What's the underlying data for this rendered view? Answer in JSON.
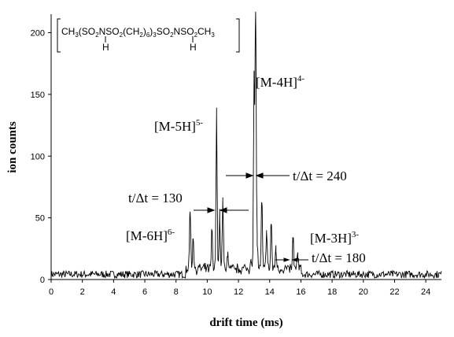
{
  "chart_data": {
    "type": "line",
    "xlabel": "drift time (ms)",
    "ylabel": "ion counts",
    "xlim": [
      0,
      25
    ],
    "ylim": [
      0,
      215
    ],
    "x_ticks": [
      "0",
      "2",
      "4",
      "6",
      "8",
      "10",
      "12",
      "14",
      "16",
      "18",
      "20",
      "22",
      "24"
    ],
    "y_ticks": [
      "0",
      "50",
      "100",
      "150",
      "200"
    ],
    "grid": false,
    "legend": "none",
    "series": [
      {
        "color": "#000000",
        "baseline": 3,
        "peaks": [
          {
            "x": 8.9,
            "y": 52
          },
          {
            "x": 9.1,
            "y": 30
          },
          {
            "x": 10.3,
            "y": 35
          },
          {
            "x": 10.6,
            "y": 130
          },
          {
            "x": 10.8,
            "y": 45
          },
          {
            "x": 11.0,
            "y": 58
          },
          {
            "x": 11.3,
            "y": 15
          },
          {
            "x": 12.8,
            "y": 12
          },
          {
            "x": 13.0,
            "y": 157
          },
          {
            "x": 13.1,
            "y": 214
          },
          {
            "x": 13.2,
            "y": 25
          },
          {
            "x": 13.5,
            "y": 59
          },
          {
            "x": 13.8,
            "y": 35
          },
          {
            "x": 14.1,
            "y": 42
          },
          {
            "x": 14.4,
            "y": 20
          },
          {
            "x": 15.5,
            "y": 27
          },
          {
            "x": 15.8,
            "y": 14
          }
        ]
      }
    ],
    "annotations": {
      "formula_line": [
        "CH",
        "3",
        "(SO",
        "2",
        "N",
        "SO",
        "2",
        "(CH",
        "2",
        ")",
        "6",
        ")",
        "3",
        "SO",
        "2",
        "N",
        "SO",
        "2",
        "CH",
        "3"
      ],
      "formula_h1": "H",
      "formula_h2": "H",
      "m4h": "[M-4H]",
      "m4h_sup": "4-",
      "m5h": "[M-5H]",
      "m5h_sup": "5-",
      "m6h": "[M-6H]",
      "m6h_sup": "6-",
      "m3h": "[M-3H]",
      "m3h_sup": "3-",
      "res240": "t/Δt = 240",
      "res130": "t/Δt = 130",
      "res180": "t/Δt = 180"
    }
  }
}
